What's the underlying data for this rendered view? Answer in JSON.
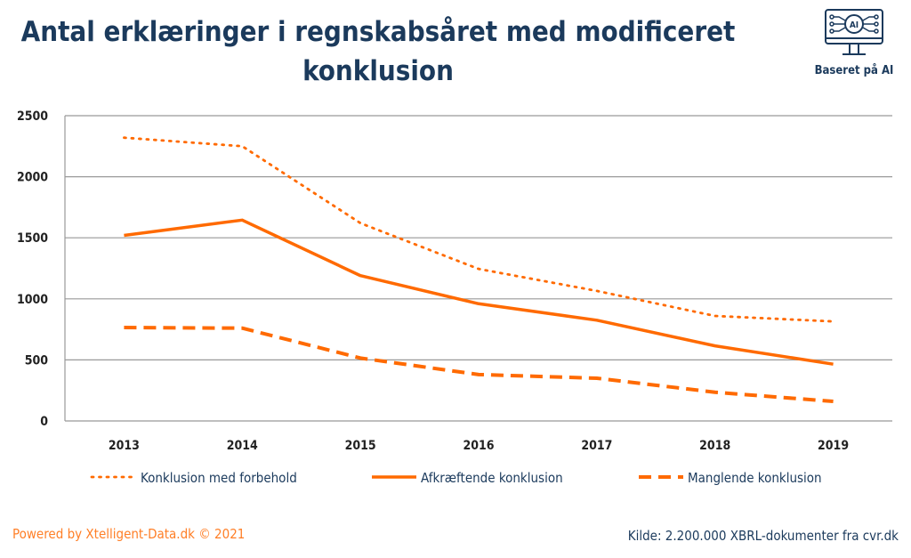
{
  "chart_data": {
    "type": "line",
    "title": "Antal erklæringer i regnskabsåret med modificeret konklusion",
    "xlabel": "",
    "ylabel": "",
    "categories": [
      "2013",
      "2014",
      "2015",
      "2016",
      "2017",
      "2018",
      "2019"
    ],
    "ylim": [
      0,
      2500
    ],
    "yticks": [
      "0",
      "500",
      "1000",
      "1500",
      "2000",
      "2500"
    ],
    "grid": true,
    "legend_position": "bottom",
    "series": [
      {
        "name": "Konklusion med forbehold",
        "style": "dotted",
        "color": "#ff6a00",
        "values": [
          2320,
          2250,
          1620,
          1245,
          1065,
          860,
          815
        ]
      },
      {
        "name": "Afkræftende konklusion",
        "style": "solid",
        "color": "#ff6a00",
        "values": [
          1520,
          1645,
          1190,
          960,
          825,
          615,
          465
        ]
      },
      {
        "name": "Manglende konklusion",
        "style": "dashed",
        "color": "#ff6a00",
        "values": [
          765,
          760,
          515,
          380,
          350,
          235,
          160
        ]
      }
    ]
  },
  "badge": {
    "label": "Baseret på AI",
    "icon_text": "AI",
    "icon": "ai-monitor-icon"
  },
  "footer": {
    "powered_by": "Powered by Xtelligent-Data.dk © 2021",
    "source": "Kilde: 2.200.000 XBRL-dokumenter fra cvr.dk"
  }
}
